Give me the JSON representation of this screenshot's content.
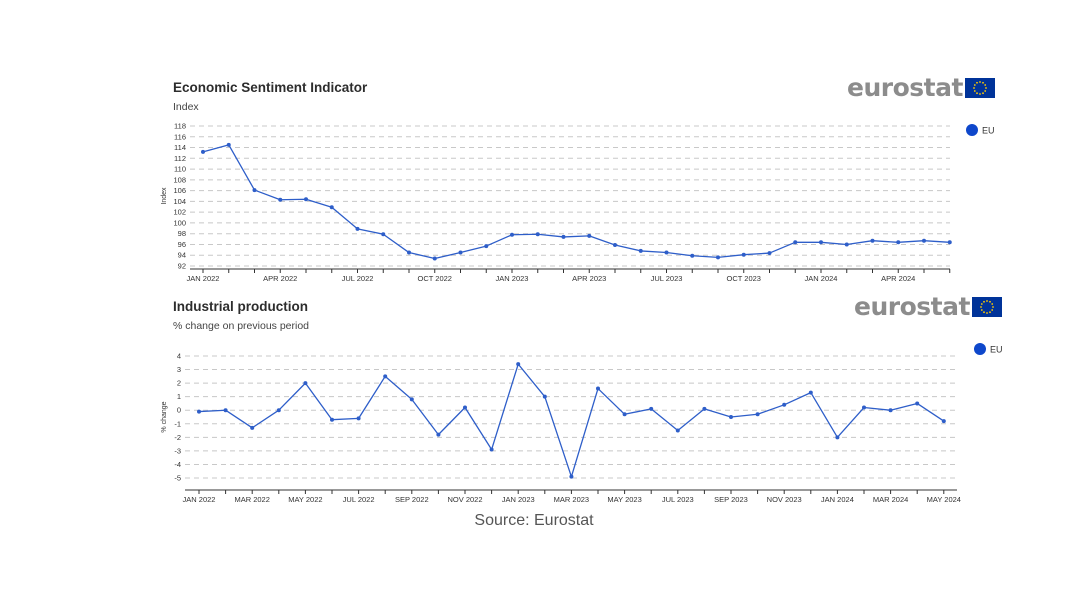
{
  "brand": {
    "logo_text": "eurostat",
    "brand_blue": "#0e47cb",
    "flag_blue": "#003399",
    "flag_star": "#ffcc00"
  },
  "source_text": "Source: Eurostat",
  "chart_data": [
    {
      "type": "line",
      "title": "Economic Sentiment Indicator",
      "subtitle": "Index",
      "ylabel": "Index",
      "ylim": [
        92,
        118
      ],
      "yticks": [
        92,
        94,
        96,
        98,
        100,
        102,
        104,
        106,
        108,
        110,
        112,
        114,
        116,
        118
      ],
      "grid": true,
      "legend_position": "top-right",
      "color": "#2e5ec9",
      "x": [
        "2022-01",
        "2022-02",
        "2022-03",
        "2022-04",
        "2022-05",
        "2022-06",
        "2022-07",
        "2022-08",
        "2022-09",
        "2022-10",
        "2022-11",
        "2022-12",
        "2023-01",
        "2023-02",
        "2023-03",
        "2023-04",
        "2023-05",
        "2023-06",
        "2023-07",
        "2023-08",
        "2023-09",
        "2023-10",
        "2023-11",
        "2023-12",
        "2024-01",
        "2024-02",
        "2024-03",
        "2024-04",
        "2024-05",
        "2024-06"
      ],
      "xtick_labels": [
        "JAN 2022",
        "",
        "",
        "APR 2022",
        "",
        "",
        "JUL 2022",
        "",
        "",
        "OCT 2022",
        "",
        "",
        "JAN 2023",
        "",
        "",
        "APR 2023",
        "",
        "",
        "JUL 2023",
        "",
        "",
        "OCT 2023",
        "",
        "",
        "JAN 2024",
        "",
        "",
        "APR 2024",
        "",
        ""
      ],
      "series": [
        {
          "name": "EU",
          "values": [
            113.2,
            114.5,
            106.1,
            104.3,
            104.4,
            102.9,
            98.9,
            97.9,
            94.5,
            93.4,
            94.5,
            95.7,
            97.8,
            97.9,
            97.4,
            97.6,
            95.9,
            94.8,
            94.5,
            93.9,
            93.6,
            94.1,
            94.4,
            96.4,
            96.4,
            96.0,
            96.7,
            96.4,
            96.7,
            96.4
          ]
        }
      ]
    },
    {
      "type": "line",
      "title": "Industrial production",
      "subtitle": "% change on previous period",
      "ylabel": "% change",
      "ylim": [
        -5,
        4
      ],
      "yticks": [
        -5,
        -4,
        -3,
        -2,
        -1,
        0,
        1,
        2,
        3,
        4
      ],
      "grid": true,
      "legend_position": "top-right",
      "color": "#2e5ec9",
      "x": [
        "2022-01",
        "2022-02",
        "2022-03",
        "2022-04",
        "2022-05",
        "2022-06",
        "2022-07",
        "2022-08",
        "2022-09",
        "2022-10",
        "2022-11",
        "2022-12",
        "2023-01",
        "2023-02",
        "2023-03",
        "2023-04",
        "2023-05",
        "2023-06",
        "2023-07",
        "2023-08",
        "2023-09",
        "2023-10",
        "2023-11",
        "2023-12",
        "2024-01",
        "2024-02",
        "2024-03",
        "2024-04",
        "2024-05"
      ],
      "xtick_labels": [
        "JAN 2022",
        "",
        "MAR 2022",
        "",
        "MAY 2022",
        "",
        "JUL 2022",
        "",
        "SEP 2022",
        "",
        "NOV 2022",
        "",
        "JAN 2023",
        "",
        "MAR 2023",
        "",
        "MAY 2023",
        "",
        "JUL 2023",
        "",
        "SEP 2023",
        "",
        "NOV 2023",
        "",
        "JAN 2024",
        "",
        "MAR 2024",
        "",
        "MAY 2024"
      ],
      "series": [
        {
          "name": "EU",
          "values": [
            -0.1,
            0.0,
            -1.3,
            0.0,
            2.0,
            -0.7,
            -0.6,
            2.5,
            0.8,
            -1.8,
            0.2,
            -2.9,
            3.4,
            1.0,
            -4.9,
            1.6,
            -0.3,
            0.1,
            -1.5,
            0.1,
            -0.5,
            -0.3,
            0.4,
            1.3,
            -2.0,
            0.2,
            0.0,
            0.5,
            -0.8
          ]
        }
      ]
    }
  ]
}
